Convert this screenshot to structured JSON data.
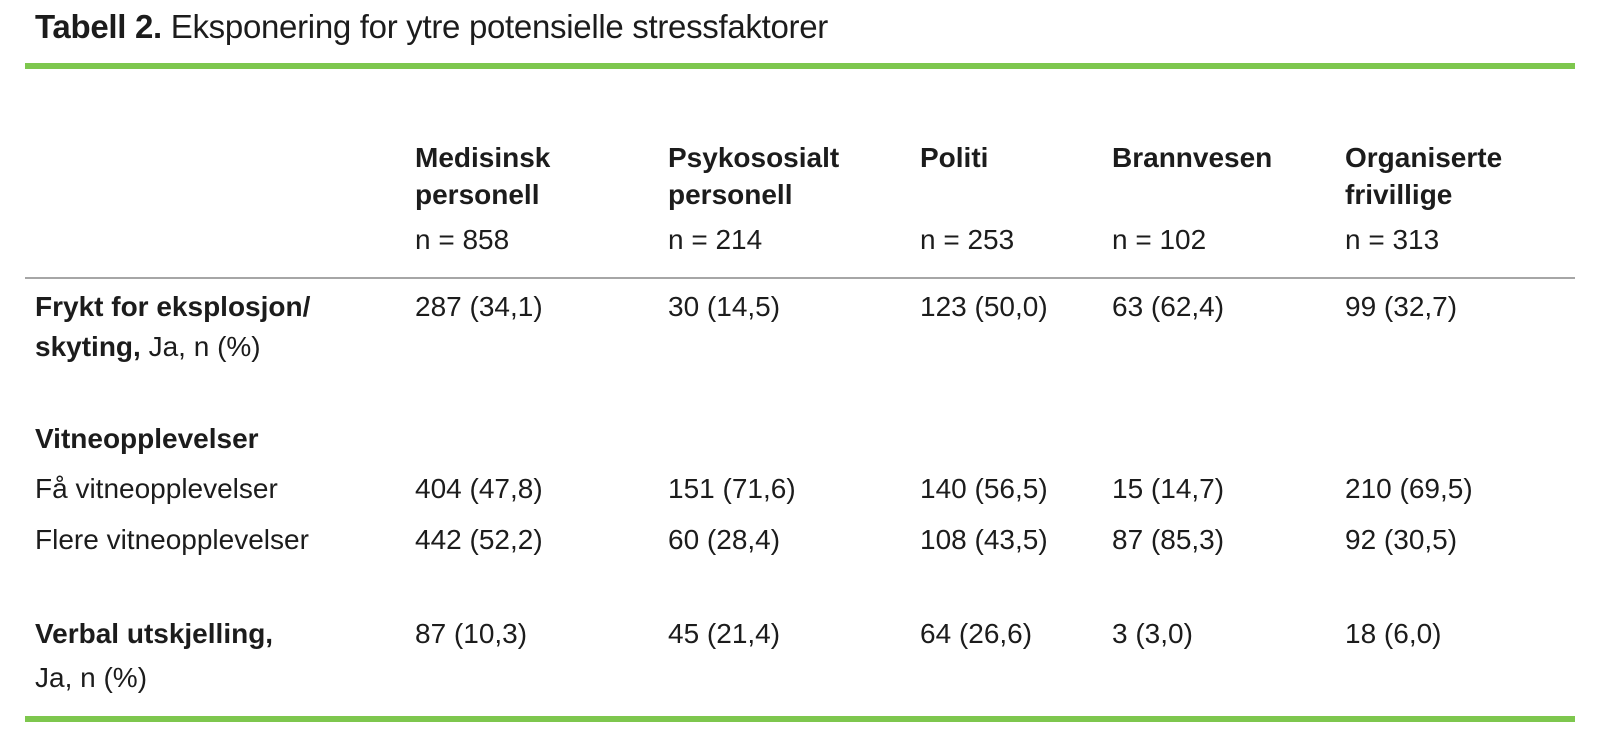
{
  "title": {
    "prefix": "Tabell 2.",
    "text": " Eksponering for ytre potensielle stressfaktorer"
  },
  "colors": {
    "accent_green": "#7ec74e",
    "rule_gray": "#a6a6a6",
    "text": "#1c1c1c"
  },
  "table": {
    "columns": [
      {
        "line1": "Medisinsk",
        "line2": "personell",
        "n": "n = 858"
      },
      {
        "line1": "Psykososialt",
        "line2": "personell",
        "n": "n = 214"
      },
      {
        "line1": "Politi",
        "line2": "",
        "n": "n = 253"
      },
      {
        "line1": "Brannvesen",
        "line2": "",
        "n": "n = 102"
      },
      {
        "line1": "Organiserte",
        "line2": "frivillige",
        "n": "n = 313"
      }
    ],
    "rows": [
      {
        "label_bold_line1": "Frykt for eksplosjon/",
        "label_bold_line2": "skyting,",
        "label_regular": " Ja, n (%)",
        "values": [
          "287 (34,1)",
          "30 (14,5)",
          "123 (50,0)",
          "63 (62,4)",
          "99 (32,7)"
        ]
      },
      {
        "section": "Vitneopplevelser"
      },
      {
        "label": "Få vitneopplevelser",
        "values": [
          "404 (47,8)",
          "151 (71,6)",
          "140 (56,5)",
          "15 (14,7)",
          "210 (69,5)"
        ]
      },
      {
        "label": "Flere vitneopplevelser",
        "values": [
          "442 (52,2)",
          "60 (28,4)",
          "108 (43,5)",
          "87 (85,3)",
          "92 (30,5)"
        ]
      },
      {
        "label_bold": "Verbal utskjelling,",
        "label_regular": "Ja, n (%)",
        "values": [
          "87 (10,3)",
          "45 (21,4)",
          "64 (26,6)",
          "3 (3,0)",
          "18 (6,0)"
        ]
      }
    ]
  }
}
